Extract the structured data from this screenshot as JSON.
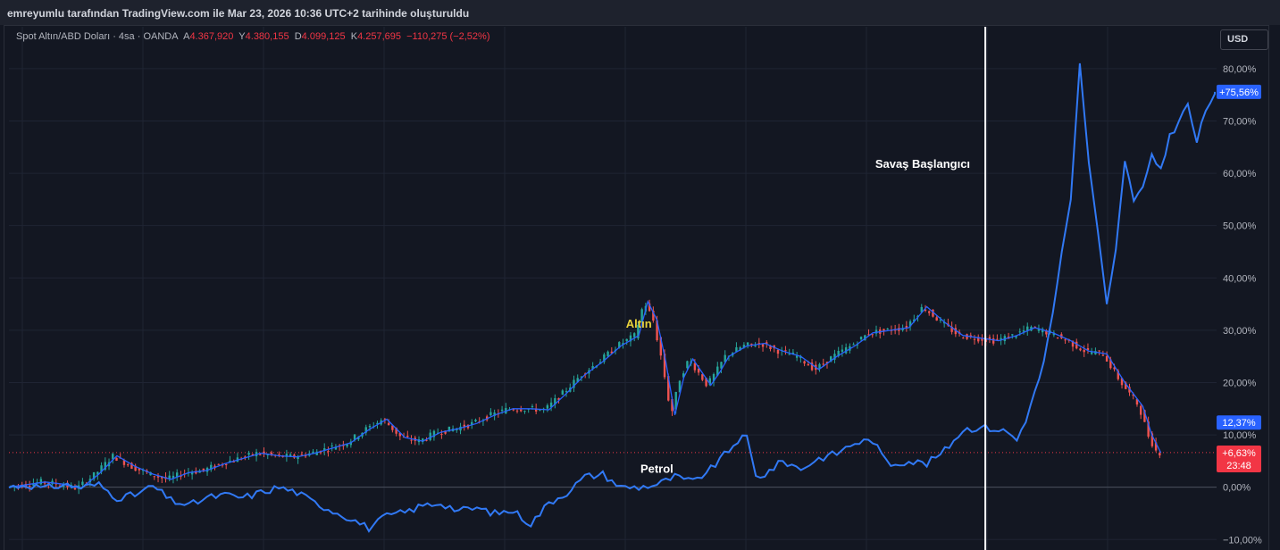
{
  "header": {
    "title": "emreyumlu tarafından TradingView.com ile Mar 23, 2026 10:36 UTC+2 tarihinde oluşturuldu"
  },
  "legend": {
    "symbol": "Spot Altın/ABD Doları · 4sa · OANDA",
    "open_label": "A",
    "open_value": "4.367,920",
    "high_label": "Y",
    "high_value": "4.380,155",
    "low_label": "D",
    "low_value": "4.099,125",
    "close_label": "K",
    "close_value": "4.257,695",
    "change": "−110,275 (−2,52%)"
  },
  "currency_button": "USD",
  "colors": {
    "background": "#131722",
    "grid": "#1f2433",
    "gold_line": "#2962ff",
    "oil_line": "#3179f5",
    "candle_up": "#26a69a",
    "candle_down": "#ef5350",
    "negative": "#f23645",
    "marker_line": "#ffffff",
    "gold_label": "#e9d33b"
  },
  "chart_data": {
    "type": "line",
    "ylabel": "",
    "y_unit": "%",
    "ylim": [
      -12,
      88
    ],
    "grid": true,
    "y_ticks": [
      {
        "value": 80,
        "label": "80,00%"
      },
      {
        "value": 70,
        "label": "70,00%"
      },
      {
        "value": 60,
        "label": "60,00%"
      },
      {
        "value": 50,
        "label": "50,00%"
      },
      {
        "value": 40,
        "label": "40,00%"
      },
      {
        "value": 30,
        "label": "30,00%"
      },
      {
        "value": 20,
        "label": "20,00%"
      },
      {
        "value": 10,
        "label": "10,00%"
      },
      {
        "value": 0,
        "label": "0,00%"
      },
      {
        "value": -10,
        "label": "−10,00%"
      }
    ],
    "x_ticks": [
      "",
      "",
      "",
      "",
      "",
      "",
      "",
      "",
      "",
      ""
    ],
    "series": [
      {
        "key": "gold",
        "label": "Altın",
        "style": "candles+line",
        "points": [
          [
            0,
            0
          ],
          [
            2,
            0.5
          ],
          [
            4,
            1
          ],
          [
            6,
            0.6
          ],
          [
            8,
            -0.2
          ],
          [
            10,
            2.5
          ],
          [
            12,
            6
          ],
          [
            14,
            4
          ],
          [
            16,
            2.5
          ],
          [
            18,
            1.5
          ],
          [
            20,
            2.8
          ],
          [
            22,
            3.2
          ],
          [
            24,
            4.5
          ],
          [
            26,
            5.5
          ],
          [
            28,
            6.5
          ],
          [
            30,
            6
          ],
          [
            32,
            5.8
          ],
          [
            34,
            6.5
          ],
          [
            36,
            7.5
          ],
          [
            38,
            8.5
          ],
          [
            40,
            11
          ],
          [
            42,
            13
          ],
          [
            44,
            9.5
          ],
          [
            46,
            8.8
          ],
          [
            48,
            10.5
          ],
          [
            50,
            11.2
          ],
          [
            52,
            12.2
          ],
          [
            54,
            13.8
          ],
          [
            56,
            15
          ],
          [
            58,
            15
          ],
          [
            60,
            14.8
          ],
          [
            62,
            18
          ],
          [
            64,
            21.5
          ],
          [
            66,
            24
          ],
          [
            68,
            27
          ],
          [
            70,
            29
          ],
          [
            71,
            35.5
          ],
          [
            72,
            32
          ],
          [
            73,
            24
          ],
          [
            74,
            13.8
          ],
          [
            75,
            21
          ],
          [
            76,
            24.5
          ],
          [
            77,
            22
          ],
          [
            78,
            19.5
          ],
          [
            79,
            22
          ],
          [
            80,
            25
          ],
          [
            82,
            27
          ],
          [
            84,
            27.5
          ],
          [
            86,
            26
          ],
          [
            88,
            25
          ],
          [
            90,
            22.5
          ],
          [
            92,
            25
          ],
          [
            94,
            27
          ],
          [
            96,
            29.5
          ],
          [
            98,
            30
          ],
          [
            100,
            30.5
          ],
          [
            102,
            34.5
          ],
          [
            104,
            31.5
          ],
          [
            106,
            29
          ],
          [
            108,
            28.5
          ],
          [
            110,
            28
          ],
          [
            112,
            29
          ],
          [
            114,
            30.5
          ],
          [
            116,
            29.5
          ],
          [
            118,
            28
          ],
          [
            120,
            26
          ],
          [
            122,
            25.5
          ],
          [
            124,
            20
          ],
          [
            126,
            15.5
          ],
          [
            127,
            10
          ],
          [
            128,
            6.6
          ]
        ],
        "end_badge": "+6,63%",
        "end_countdown": "23:48"
      },
      {
        "key": "oil",
        "label": "Petrol",
        "style": "line",
        "points": [
          [
            0,
            0
          ],
          [
            2,
            0.5
          ],
          [
            4,
            -0.3
          ],
          [
            6,
            0.5
          ],
          [
            8,
            0
          ],
          [
            10,
            0.5
          ],
          [
            12,
            -2
          ],
          [
            14,
            -1.5
          ],
          [
            16,
            0.2
          ],
          [
            18,
            -2.5
          ],
          [
            20,
            -3.5
          ],
          [
            22,
            -2
          ],
          [
            24,
            -1.5
          ],
          [
            26,
            -2
          ],
          [
            28,
            -1
          ],
          [
            30,
            0
          ],
          [
            32,
            -1
          ],
          [
            34,
            -3
          ],
          [
            36,
            -4.5
          ],
          [
            38,
            -6
          ],
          [
            40,
            -7.8
          ],
          [
            42,
            -5.5
          ],
          [
            44,
            -4.8
          ],
          [
            46,
            -3.5
          ],
          [
            48,
            -3
          ],
          [
            50,
            -4.5
          ],
          [
            52,
            -4
          ],
          [
            54,
            -5
          ],
          [
            56,
            -4.5
          ],
          [
            58,
            -7
          ],
          [
            60,
            -3
          ],
          [
            62,
            -1
          ],
          [
            64,
            2
          ],
          [
            66,
            2.5
          ],
          [
            68,
            0
          ],
          [
            70,
            0
          ],
          [
            72,
            0.5
          ],
          [
            74,
            2
          ],
          [
            76,
            1
          ],
          [
            78,
            3.5
          ],
          [
            80,
            7
          ],
          [
            81,
            9
          ],
          [
            82,
            9.5
          ],
          [
            83,
            2
          ],
          [
            84,
            2.5
          ],
          [
            86,
            5
          ],
          [
            88,
            3.5
          ],
          [
            90,
            5.5
          ],
          [
            92,
            6.5
          ],
          [
            94,
            8.5
          ],
          [
            96,
            9
          ],
          [
            97,
            6
          ],
          [
            98,
            4.5
          ],
          [
            100,
            5
          ],
          [
            102,
            4.5
          ],
          [
            104,
            7
          ],
          [
            106,
            11
          ],
          [
            108,
            11.5
          ],
          [
            110,
            11
          ],
          [
            111,
            10.5
          ],
          [
            112,
            9
          ],
          [
            113,
            13
          ],
          [
            114,
            18
          ],
          [
            115,
            24
          ],
          [
            116,
            33
          ],
          [
            117,
            45
          ],
          [
            118,
            55
          ],
          [
            119,
            81
          ],
          [
            120,
            62
          ],
          [
            121,
            49
          ],
          [
            122,
            35
          ],
          [
            123,
            45
          ],
          [
            124,
            62
          ],
          [
            125,
            55
          ],
          [
            126,
            57
          ],
          [
            127,
            63
          ],
          [
            128,
            61
          ],
          [
            129,
            67
          ],
          [
            130,
            70
          ],
          [
            131,
            73
          ],
          [
            132,
            66
          ],
          [
            133,
            72
          ],
          [
            134,
            75.56
          ]
        ],
        "end_badge": "+75,56%"
      }
    ],
    "extra_badges": [
      {
        "label": "12,37%",
        "value": 12.37,
        "color": "#2962ff"
      }
    ],
    "annotations": [
      {
        "text": "Savaş Başlangıcı",
        "x": 108,
        "y": 61,
        "color": "#ffffff",
        "anchor": "end"
      },
      {
        "text": "Altın",
        "x": 70,
        "y": 30.5,
        "color": "#e9d33b",
        "anchor": "middle"
      },
      {
        "text": "Petrol",
        "x": 72,
        "y": 2.8,
        "color": "#ffffff",
        "anchor": "middle"
      }
    ],
    "vertical_marker": {
      "x": 108.5
    },
    "current_price_line": {
      "value": 6.63
    }
  }
}
